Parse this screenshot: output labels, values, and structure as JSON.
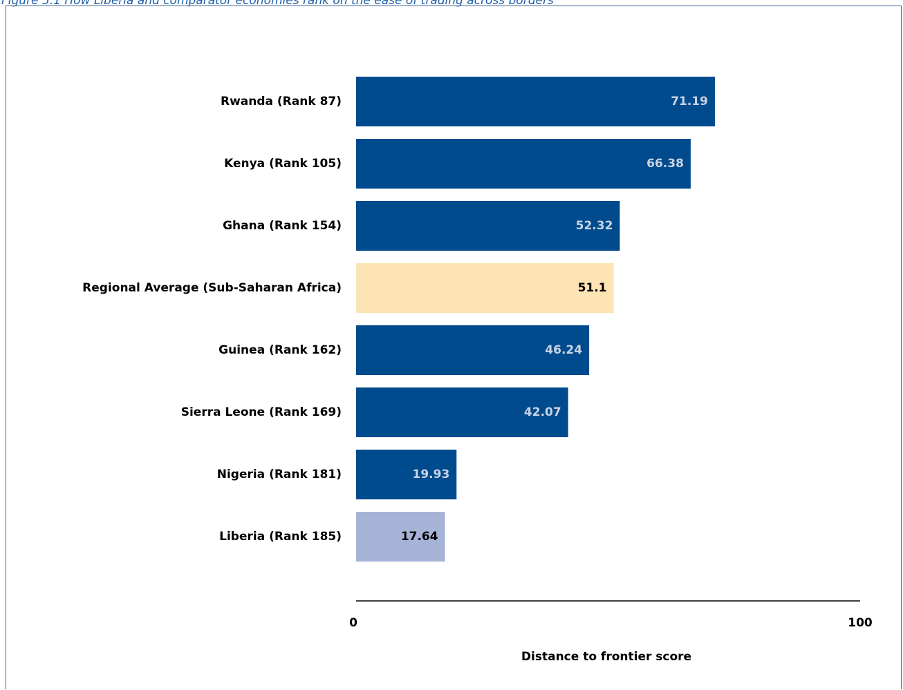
{
  "figure_title": "Figure 5.1 How Liberia and comparator economies rank on the ease of trading across borders",
  "colors": {
    "primary_bar": "#004b8d",
    "regional_bar": "#fde4b4",
    "focus_bar": "#a7b3d6",
    "primary_label": "#c9d4e6",
    "dark_label": "#000000",
    "axis_line": "#000000",
    "title_color": "#1f5fa8"
  },
  "chart_data": {
    "type": "bar",
    "orientation": "horizontal",
    "categories": [
      "Rwanda (Rank 87)",
      "Kenya (Rank 105)",
      "Ghana (Rank 154)",
      "Regional Average (Sub-Saharan Africa)",
      "Guinea (Rank 162)",
      "Sierra Leone (Rank 169)",
      "Nigeria (Rank 181)",
      "Liberia (Rank 185)"
    ],
    "values": [
      71.19,
      66.38,
      52.32,
      51.1,
      46.24,
      42.07,
      19.93,
      17.64
    ],
    "data_labels": [
      "71.19",
      "66.38",
      "52.32",
      "51.1",
      "46.24",
      "42.07",
      "19.93",
      "17.64"
    ],
    "bar_styles": [
      "primary",
      "primary",
      "primary",
      "regional",
      "primary",
      "primary",
      "primary",
      "focus"
    ],
    "xlabel": "Distance to frontier score",
    "ylabel": "",
    "xlim": [
      0,
      100
    ],
    "x_ticks": [
      "0",
      "100"
    ],
    "grid": false,
    "legend": "none"
  }
}
